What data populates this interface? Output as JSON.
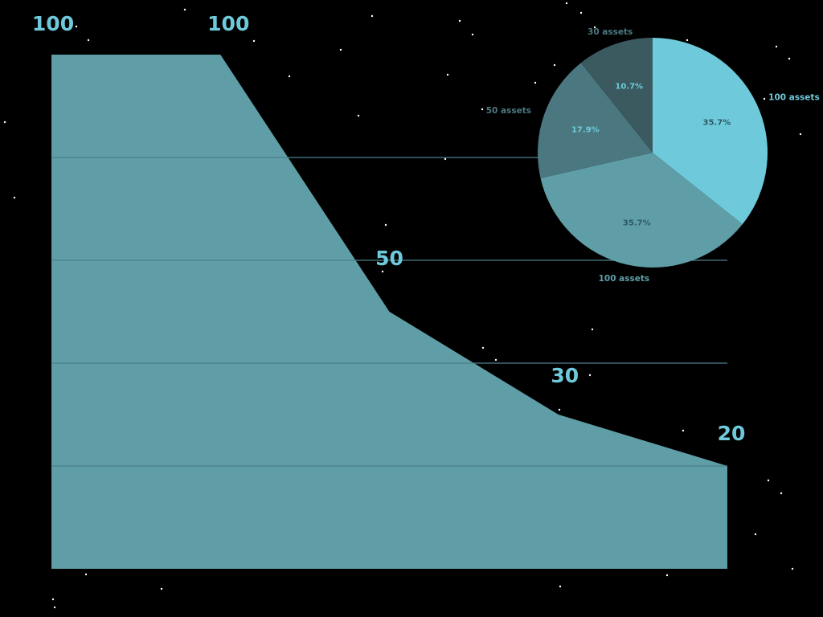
{
  "colors": {
    "background": "#000000",
    "area_fill": "#5f9ea7",
    "gridline": "#4a8089",
    "value_label": "#6ecadb",
    "pie_slices": [
      "#6ecadb",
      "#5f9ea7",
      "#4b7880",
      "#3a5a60"
    ],
    "pie_pct_dark": "#2f5a62",
    "pie_pct_light": "#6ecadb",
    "star": "#ffffff"
  },
  "chart_data": [
    {
      "type": "area",
      "x": [
        0,
        1,
        2,
        3,
        4
      ],
      "values": [
        100,
        100,
        50,
        30,
        20
      ],
      "data_labels": [
        "100",
        "100",
        "50",
        "30",
        "20"
      ],
      "ylim": [
        0,
        100
      ],
      "grid": true,
      "gridline_values": [
        20,
        40,
        60,
        80
      ]
    },
    {
      "type": "pie",
      "slices": [
        {
          "label": "100 assets",
          "value": 100,
          "pct_label": "35.7%"
        },
        {
          "label": "100 assets",
          "value": 100,
          "pct_label": "35.7%"
        },
        {
          "label": "50 assets",
          "value": 50,
          "pct_label": "17.9%"
        },
        {
          "label": "30 assets",
          "value": 30,
          "pct_label": "10.7%"
        }
      ],
      "start_angle_deg": 90,
      "direction": "clockwise"
    }
  ]
}
